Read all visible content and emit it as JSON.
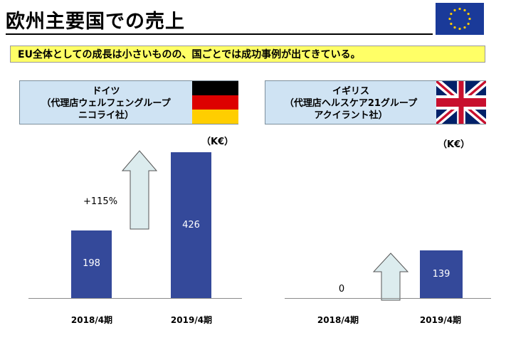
{
  "title": "欧州主要国での売上",
  "banner": "EU全体としての成長は小さいものの、国ごとでは成功事例が出てきている。",
  "germany": {
    "name": "ドイツ",
    "agent": "（代理店ウェルフェングループ",
    "company": "ニコライ社）",
    "unit": "（K€）",
    "growth": "+115%"
  },
  "uk": {
    "name": "イギリス",
    "agent": "（代理店ヘルスケア21グループ",
    "company": "アクイラント社）",
    "unit": "（K€）"
  },
  "chart_data": [
    {
      "type": "bar",
      "title": "ドイツ",
      "categories": [
        "2018/4期",
        "2019/4期"
      ],
      "values": [
        198,
        426
      ],
      "value_labels": [
        "198",
        "426"
      ],
      "unit": "K€",
      "annotation": "+115%",
      "ylim": [
        0,
        450
      ]
    },
    {
      "type": "bar",
      "title": "イギリス",
      "categories": [
        "2018/4期",
        "2019/4期"
      ],
      "values": [
        0,
        139
      ],
      "value_labels": [
        "0",
        "139"
      ],
      "unit": "K€",
      "ylim": [
        0,
        450
      ]
    }
  ],
  "colors": {
    "bar": "#34499a",
    "card": "#cfe3f3",
    "banner": "#ffff66",
    "arrow": "#dcecee",
    "eu_blue": "#1a3a99",
    "star": "#ffcc00"
  },
  "icons": [
    "eu-flag-icon",
    "germany-flag-icon",
    "uk-flag-icon",
    "up-arrow-icon"
  ]
}
